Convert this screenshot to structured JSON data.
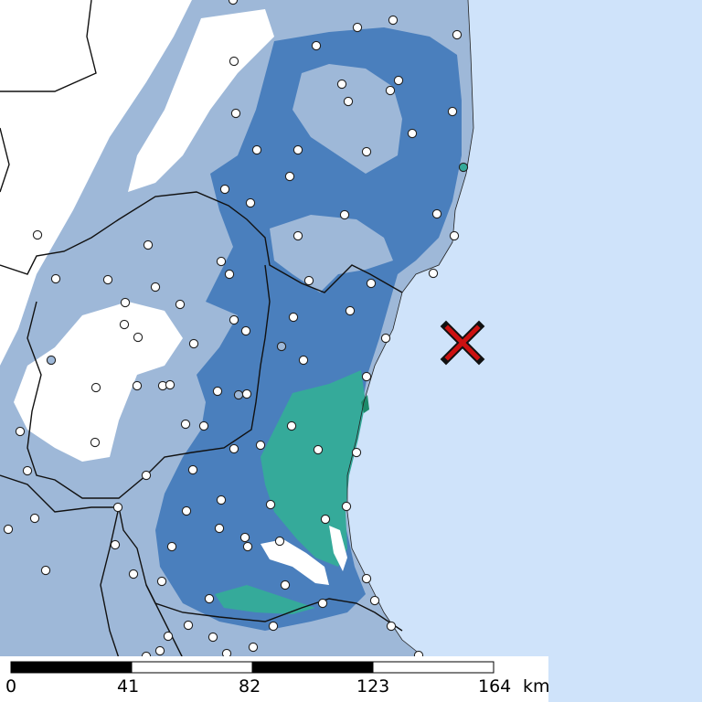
{
  "colors": {
    "sea": "#cfe3fa",
    "land_unaffected": "#ffffff",
    "intensity_1": "#9eb8d8",
    "intensity_2": "#4a7fbd",
    "intensity_3": "#35aa9a",
    "intensity_4": "#1d8a6a",
    "border": "#111111",
    "station": "#ffffff",
    "epicenter": "#cc1111"
  },
  "epicenter": {
    "icon": "x-mark-icon"
  },
  "scale": {
    "ticks": [
      "0",
      "41",
      "82",
      "123",
      "164"
    ],
    "unit": "km"
  }
}
